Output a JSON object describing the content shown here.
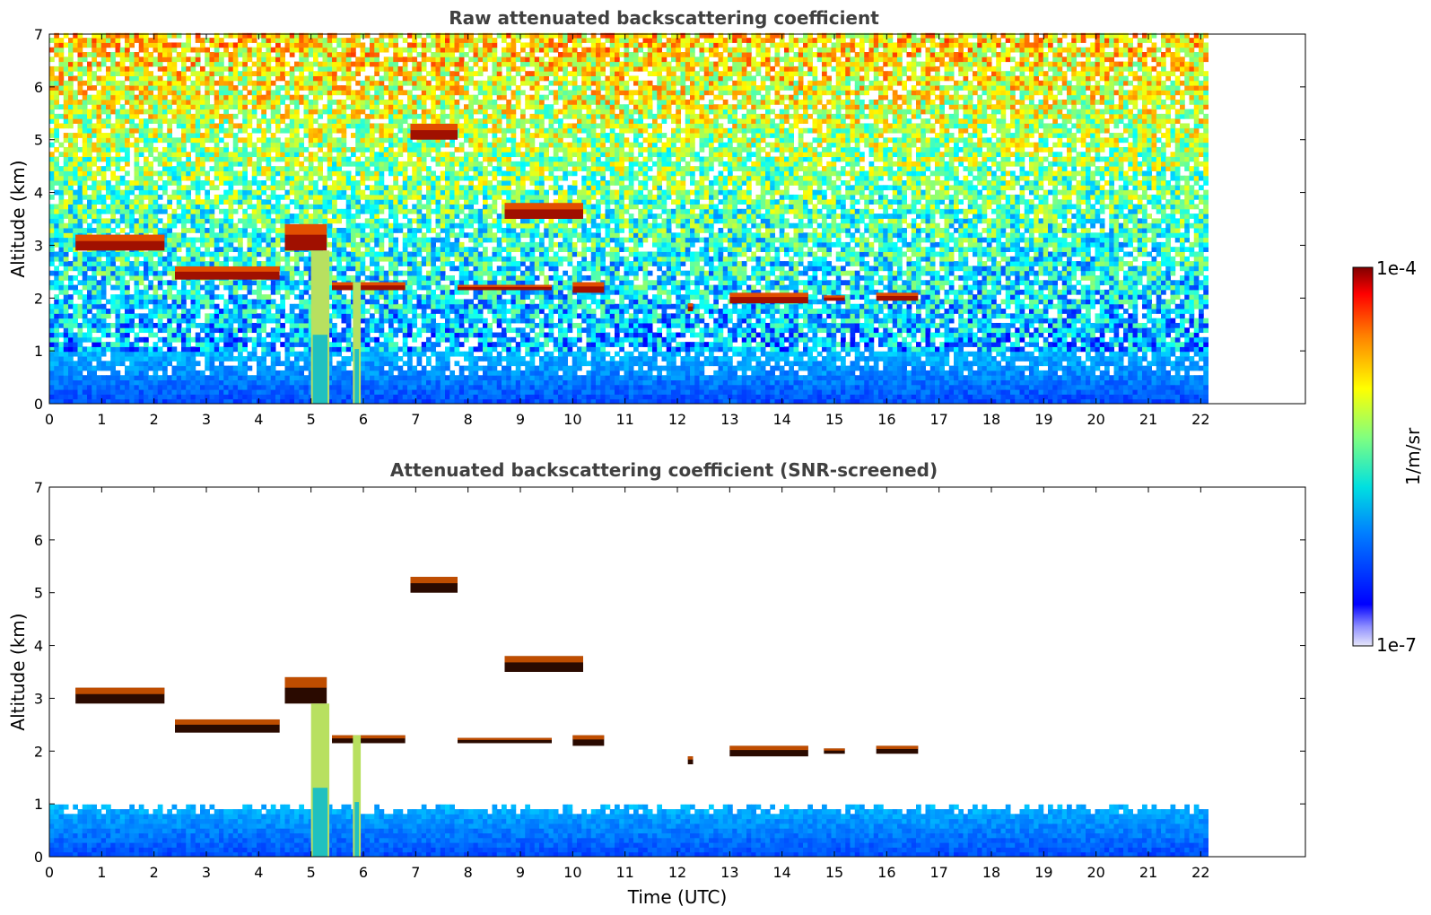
{
  "chart_data": [
    {
      "type": "heatmap",
      "title": "Raw attenuated backscattering coefficient",
      "xlabel": "",
      "ylabel": "Altitude (km)",
      "xlim": [
        0,
        24
      ],
      "ylim": [
        0,
        7
      ],
      "x_ticks": [
        "0",
        "1",
        "2",
        "3",
        "4",
        "5",
        "6",
        "7",
        "8",
        "9",
        "10",
        "11",
        "12",
        "13",
        "14",
        "15",
        "16",
        "17",
        "18",
        "19",
        "20",
        "21",
        "22"
      ],
      "y_ticks": [
        "0",
        "1",
        "2",
        "3",
        "4",
        "5",
        "6",
        "7"
      ],
      "data_end_time": 22.1,
      "layers": [
        {
          "t0": 0.5,
          "t1": 2.2,
          "z0": 2.9,
          "z1": 3.2
        },
        {
          "t0": 2.4,
          "t1": 4.4,
          "z0": 2.35,
          "z1": 2.6
        },
        {
          "t0": 4.5,
          "t1": 5.3,
          "z0": 2.9,
          "z1": 3.4
        },
        {
          "t0": 5.4,
          "t1": 6.8,
          "z0": 2.15,
          "z1": 2.3
        },
        {
          "t0": 7.8,
          "t1": 9.6,
          "z0": 2.15,
          "z1": 2.25
        },
        {
          "t0": 6.9,
          "t1": 7.8,
          "z0": 5.0,
          "z1": 5.3
        },
        {
          "t0": 8.7,
          "t1": 10.2,
          "z0": 3.5,
          "z1": 3.8
        },
        {
          "t0": 10.0,
          "t1": 10.6,
          "z0": 2.1,
          "z1": 2.3
        },
        {
          "t0": 12.2,
          "t1": 12.3,
          "z0": 1.75,
          "z1": 1.9
        },
        {
          "t0": 13.0,
          "t1": 14.5,
          "z0": 1.9,
          "z1": 2.1
        },
        {
          "t0": 14.8,
          "t1": 15.2,
          "z0": 1.95,
          "z1": 2.05
        },
        {
          "t0": 15.8,
          "t1": 16.6,
          "z0": 1.95,
          "z1": 2.1
        }
      ],
      "precipitation": [
        {
          "t0": 5.0,
          "t1": 5.35,
          "z0": 0,
          "z1": 2.9
        },
        {
          "t0": 5.8,
          "t1": 5.95,
          "z0": 0,
          "z1": 2.3
        }
      ],
      "boundary_layer_top_km": 0.9
    },
    {
      "type": "heatmap",
      "title": "Attenuated backscattering coefficient (SNR-screened)",
      "xlabel": "Time (UTC)",
      "ylabel": "Altitude (km)",
      "xlim": [
        0,
        24
      ],
      "ylim": [
        0,
        7
      ],
      "x_ticks": [
        "0",
        "1",
        "2",
        "3",
        "4",
        "5",
        "6",
        "7",
        "8",
        "9",
        "10",
        "11",
        "12",
        "13",
        "14",
        "15",
        "16",
        "17",
        "18",
        "19",
        "20",
        "21",
        "22"
      ],
      "y_ticks": [
        "0",
        "1",
        "2",
        "3",
        "4",
        "5",
        "6",
        "7"
      ],
      "data_end_time": 22.1,
      "boundary_layer_top_km": 0.9,
      "screened": true
    }
  ],
  "colorbar": {
    "min_label": "1e-7",
    "max_label": "1e-4",
    "unit_label": "1/m/sr",
    "colormap": "jet"
  }
}
